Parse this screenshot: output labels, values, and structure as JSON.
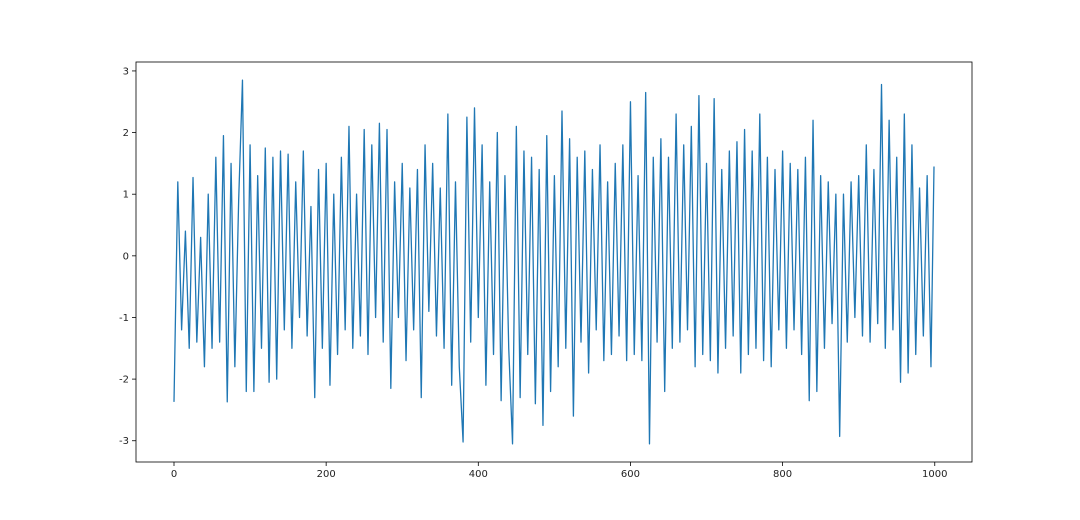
{
  "chart_data": {
    "type": "line",
    "x": [
      0,
      5,
      10,
      15,
      20,
      25,
      30,
      35,
      40,
      45,
      50,
      55,
      60,
      65,
      70,
      75,
      80,
      85,
      90,
      95,
      100,
      105,
      110,
      115,
      120,
      125,
      130,
      135,
      140,
      145,
      150,
      155,
      160,
      165,
      170,
      175,
      180,
      185,
      190,
      195,
      200,
      205,
      210,
      215,
      220,
      225,
      230,
      235,
      240,
      245,
      250,
      255,
      260,
      265,
      270,
      275,
      280,
      285,
      290,
      295,
      300,
      305,
      310,
      315,
      320,
      325,
      330,
      335,
      340,
      345,
      350,
      355,
      360,
      365,
      370,
      375,
      380,
      385,
      390,
      395,
      400,
      405,
      410,
      415,
      420,
      425,
      430,
      435,
      440,
      445,
      450,
      455,
      460,
      465,
      470,
      475,
      480,
      485,
      490,
      495,
      500,
      505,
      510,
      515,
      520,
      525,
      530,
      535,
      540,
      545,
      550,
      555,
      560,
      565,
      570,
      575,
      580,
      585,
      590,
      595,
      600,
      605,
      610,
      615,
      620,
      625,
      630,
      635,
      640,
      645,
      650,
      655,
      660,
      665,
      670,
      675,
      680,
      685,
      690,
      695,
      700,
      705,
      710,
      715,
      720,
      725,
      730,
      735,
      740,
      745,
      750,
      755,
      760,
      765,
      770,
      775,
      780,
      785,
      790,
      795,
      800,
      805,
      810,
      815,
      820,
      825,
      830,
      835,
      840,
      845,
      850,
      855,
      860,
      865,
      870,
      875,
      880,
      885,
      890,
      895,
      900,
      905,
      910,
      915,
      920,
      925,
      930,
      935,
      940,
      945,
      950,
      955,
      960,
      965,
      970,
      975,
      980,
      985,
      990,
      995,
      999
    ],
    "series": [
      {
        "color": "#1f77b4",
        "values": [
          -2.37,
          1.2,
          -1.2,
          0.4,
          -1.5,
          1.27,
          -1.4,
          0.3,
          -1.8,
          1.0,
          -1.5,
          1.6,
          -1.4,
          1.95,
          -2.37,
          1.5,
          -1.8,
          0.9,
          2.85,
          -2.2,
          1.8,
          -2.2,
          1.3,
          -1.5,
          1.75,
          -2.05,
          1.6,
          -2.0,
          1.7,
          -1.2,
          1.65,
          -1.5,
          1.2,
          -1.0,
          1.7,
          -1.3,
          0.8,
          -2.3,
          1.4,
          -1.5,
          1.5,
          -2.1,
          1.0,
          -1.6,
          1.6,
          -1.2,
          2.1,
          -1.5,
          1.0,
          -1.3,
          2.05,
          -1.6,
          1.8,
          -1.0,
          2.15,
          -1.4,
          2.05,
          -2.15,
          1.2,
          -1.0,
          1.5,
          -1.7,
          1.1,
          -1.2,
          1.4,
          -2.3,
          1.8,
          -0.9,
          1.5,
          -1.3,
          1.1,
          -1.5,
          2.3,
          -2.1,
          1.2,
          -1.8,
          -3.02,
          2.25,
          -1.4,
          2.4,
          -1.0,
          1.8,
          -2.1,
          1.2,
          -1.6,
          2.0,
          -2.35,
          1.3,
          -1.5,
          -3.05,
          2.1,
          -2.3,
          1.7,
          -1.6,
          1.6,
          -2.4,
          1.4,
          -2.75,
          1.95,
          -2.2,
          1.3,
          -1.8,
          2.35,
          -1.5,
          1.9,
          -2.6,
          1.6,
          -1.4,
          1.7,
          -1.9,
          1.4,
          -1.2,
          1.8,
          -1.7,
          1.2,
          -1.6,
          1.5,
          -1.3,
          1.8,
          -1.7,
          2.5,
          -1.6,
          1.3,
          -1.7,
          2.65,
          -3.05,
          1.6,
          -1.4,
          1.9,
          -2.2,
          1.6,
          -1.5,
          2.3,
          -1.4,
          1.8,
          -1.2,
          2.1,
          -1.8,
          2.6,
          -1.6,
          1.5,
          -1.7,
          2.55,
          -1.9,
          1.4,
          -1.5,
          1.7,
          -1.3,
          1.85,
          -1.9,
          2.05,
          -1.6,
          1.7,
          -1.5,
          2.3,
          -1.7,
          1.6,
          -1.8,
          1.4,
          -1.2,
          1.7,
          -1.5,
          1.5,
          -1.2,
          1.4,
          -1.6,
          1.6,
          -2.35,
          2.2,
          -2.2,
          1.3,
          -1.5,
          1.2,
          -1.1,
          1.0,
          -2.93,
          1.0,
          -1.4,
          1.2,
          -1.0,
          1.3,
          -1.3,
          1.8,
          -1.4,
          1.4,
          -1.1,
          2.78,
          -1.5,
          2.2,
          -1.2,
          1.6,
          -2.05,
          2.3,
          -1.9,
          1.8,
          -1.6,
          1.1,
          -1.3,
          1.3,
          -1.8,
          1.45
        ]
      }
    ],
    "xlim": [
      -49.95,
      1048.95
    ],
    "ylim": [
      -3.345,
      3.145
    ],
    "xticks": [
      0,
      200,
      400,
      600,
      800,
      1000
    ],
    "yticks": [
      -3,
      -2,
      -1,
      0,
      1,
      2,
      3
    ]
  }
}
